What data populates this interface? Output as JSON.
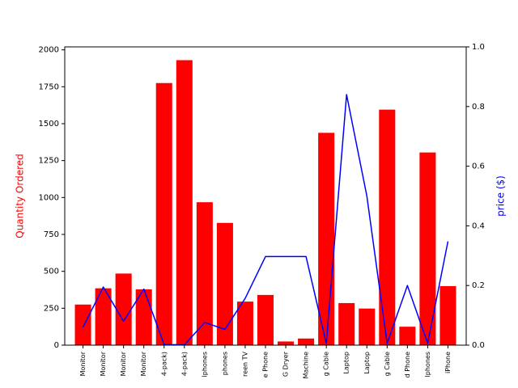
{
  "colors": {
    "bar": "#ff0000",
    "line": "#0000ff",
    "left_label": "#ff0000",
    "right_label": "#0000ff",
    "axes": "#000000"
  },
  "chart_data": {
    "type": "bar",
    "categories": [
      "Monitor",
      "Monitor",
      "Monitor",
      "Monitor",
      "4-pack)",
      "4-pack)",
      "lphones",
      "phones",
      "reen TV",
      "e Phone",
      "G Dryer",
      "Machine",
      "g Cable",
      "Laptop",
      "Laptop",
      "g Cable",
      "d Phone",
      "lphones",
      "iPhone"
    ],
    "left_axis": {
      "label": "Quantity Ordered",
      "ylim": [
        0,
        2020
      ],
      "ticks": [
        0,
        250,
        500,
        750,
        1000,
        1250,
        1500,
        1750,
        2000
      ]
    },
    "right_axis": {
      "label": "price ($)",
      "ylim": [
        0.0,
        1.0
      ],
      "ticks": [
        "0.0",
        "0.2",
        "0.4",
        "0.6",
        "0.8",
        "1.0"
      ]
    },
    "series": [
      {
        "type": "bar",
        "axis": "left",
        "values": [
          275,
          385,
          485,
          378,
          1775,
          1930,
          968,
          828,
          295,
          340,
          25,
          45,
          1438,
          285,
          248,
          1595,
          125,
          1305,
          400
        ]
      },
      {
        "type": "line",
        "axis": "right",
        "values": [
          0.06,
          0.195,
          0.08,
          0.188,
          0.002,
          0.001,
          0.076,
          0.053,
          0.157,
          0.297,
          0.297,
          0.297,
          0.006,
          0.84,
          0.5,
          0.006,
          0.2,
          0.006,
          0.348
        ]
      }
    ],
    "grid": false,
    "legend": "none"
  }
}
